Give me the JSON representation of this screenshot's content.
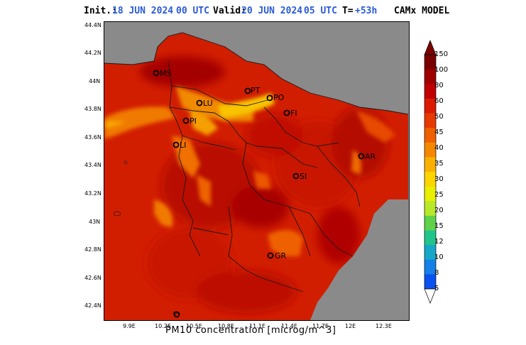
{
  "header": {
    "init_label": "Init.:",
    "init_date": "18 JUN 2024",
    "init_time": "00 UTC",
    "valid_label": "Valid:",
    "valid_date": "20 JUN 2024",
    "valid_time": "05 UTC",
    "t_label": "T=",
    "t_value": "+53h",
    "model": "CAMx MODEL"
  },
  "axes": {
    "y_ticks": [
      "44.4N",
      "44.2N",
      "44N",
      "43.8N",
      "43.6N",
      "43.4N",
      "43.2N",
      "43N",
      "42.8N",
      "42.6N",
      "42.4N"
    ],
    "x_ticks": [
      "9.9E",
      "10.2E",
      "10.5E",
      "10.8E",
      "11.1E",
      "11.4E",
      "11.7E",
      "12E",
      "12.3E"
    ]
  },
  "colorbar": {
    "labels": [
      "150",
      "100",
      "80",
      "60",
      "50",
      "45",
      "40",
      "35",
      "30",
      "25",
      "20",
      "15",
      "12",
      "10",
      "8",
      "5"
    ],
    "colors": [
      "#7a0000",
      "#9e0000",
      "#c00000",
      "#dc1a00",
      "#e63a00",
      "#ef6000",
      "#f58800",
      "#f9b000",
      "#fcd400",
      "#e8f000",
      "#b8e82a",
      "#5ed24a",
      "#21c48a",
      "#16a7c8",
      "#1480e8",
      "#0a50f0"
    ]
  },
  "cities": [
    {
      "code": "MS"
    },
    {
      "code": "LU"
    },
    {
      "code": "PT"
    },
    {
      "code": "PO"
    },
    {
      "code": "FI"
    },
    {
      "code": "PI"
    },
    {
      "code": "LI"
    },
    {
      "code": "AR"
    },
    {
      "code": "SI"
    },
    {
      "code": "GR"
    }
  ],
  "footer": {
    "title": "PM10 concentration [microg/m^3]"
  },
  "style": {
    "sea_color": "#8a8a8a",
    "accent_blue": "#2a5bd7"
  }
}
